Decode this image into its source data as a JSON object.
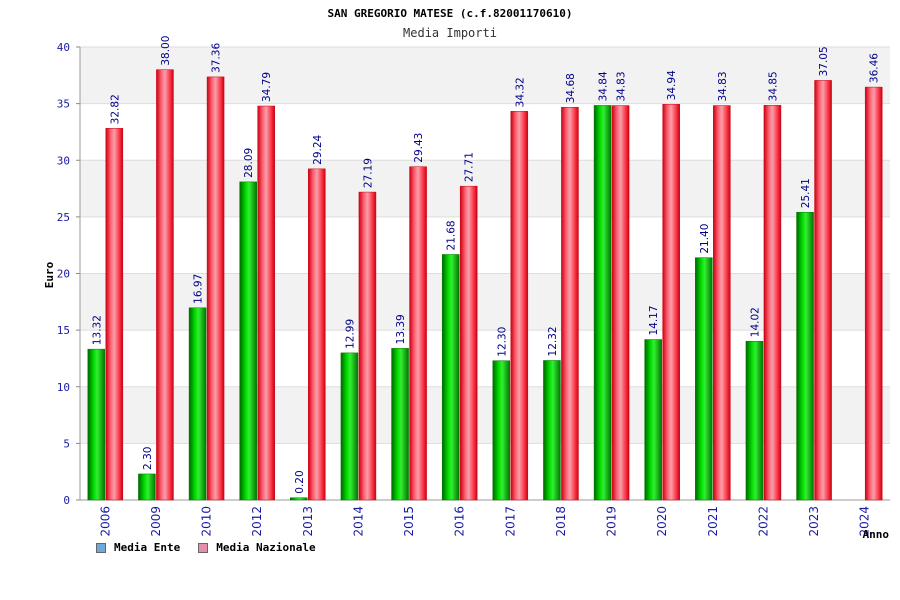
{
  "chart_data": {
    "type": "bar",
    "title": "SAN GREGORIO MATESE (c.f.82001170610)",
    "subtitle": "Media Importi",
    "xlabel": "Anno",
    "ylabel": "Euro",
    "ylim": [
      0,
      40
    ],
    "yticks": [
      0,
      5,
      10,
      15,
      20,
      25,
      30,
      35,
      40
    ],
    "grid": true,
    "legend_position": "bottom-left",
    "categories": [
      "2006",
      "2009",
      "2010",
      "2012",
      "2013",
      "2014",
      "2015",
      "2016",
      "2017",
      "2018",
      "2019",
      "2020",
      "2021",
      "2022",
      "2023",
      "2024"
    ],
    "series": [
      {
        "name": "Media Ente",
        "legend_color": "#6fa8dc",
        "bar_color": "#00aa00",
        "values": [
          13.32,
          2.3,
          16.97,
          28.09,
          0.2,
          12.99,
          13.39,
          21.68,
          12.3,
          12.32,
          34.84,
          14.17,
          21.4,
          14.02,
          25.41,
          null
        ],
        "labels": [
          "13.32",
          "2.30",
          "16.97",
          "28.09",
          "0.20",
          "12.99",
          "13.39",
          "21.68",
          "12.30",
          "12.32",
          "34.84",
          "14.17",
          "21.40",
          "14.02",
          "25.41",
          ""
        ]
      },
      {
        "name": "Media Nazionale",
        "legend_color": "#e58fb0",
        "bar_color": "#ee1122",
        "values": [
          32.82,
          38.0,
          37.36,
          34.79,
          29.24,
          27.19,
          29.43,
          27.71,
          34.32,
          34.68,
          34.83,
          34.94,
          34.83,
          34.85,
          37.05,
          36.46
        ],
        "labels": [
          "32.82",
          "38.00",
          "37.36",
          "34.79",
          "29.24",
          "27.19",
          "29.43",
          "27.71",
          "34.32",
          "34.68",
          "34.83",
          "34.94",
          "34.83",
          "34.85",
          "37.05",
          "36.46"
        ]
      }
    ]
  }
}
